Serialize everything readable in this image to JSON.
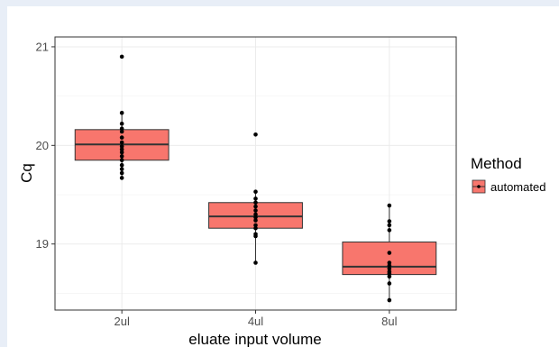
{
  "chart_data": {
    "type": "box",
    "title": "",
    "xlabel": "eluate input volume",
    "ylabel": "Cq",
    "ylim": [
      18.33,
      21.1
    ],
    "yticks": [
      19,
      20,
      21
    ],
    "grid": true,
    "legend": {
      "title": "Method",
      "entries": [
        "automated"
      ],
      "placement": "right"
    },
    "categories": [
      "2ul",
      "4ul",
      "8ul"
    ],
    "series": [
      {
        "name": "automated",
        "color": "#f8766d",
        "boxes": [
          {
            "category": "2ul",
            "min": 19.67,
            "q1": 19.85,
            "median": 20.01,
            "q3": 20.16,
            "max": 20.33,
            "points": [
              20.9,
              20.33,
              20.22,
              20.17,
              20.14,
              20.08,
              20.03,
              19.99,
              19.96,
              19.93,
              19.89,
              19.85,
              19.8,
              19.76,
              19.72,
              19.67
            ]
          },
          {
            "category": "4ul",
            "min": 18.81,
            "q1": 19.16,
            "median": 19.28,
            "q3": 19.42,
            "max": 19.53,
            "points": [
              20.11,
              19.53,
              19.46,
              19.42,
              19.38,
              19.34,
              19.3,
              19.27,
              19.24,
              19.19,
              19.16,
              19.1,
              19.08,
              18.81
            ]
          },
          {
            "category": "8ul",
            "min": 18.43,
            "q1": 18.69,
            "median": 18.77,
            "q3": 19.02,
            "max": 19.39,
            "points": [
              19.39,
              19.23,
              19.19,
              19.14,
              18.91,
              18.81,
              18.78,
              18.75,
              18.72,
              18.7,
              18.67,
              18.6,
              18.43
            ]
          }
        ]
      }
    ]
  },
  "colors": {
    "box_fill": "#f8766d",
    "box_stroke": "#333333",
    "point": "#000000",
    "grid": "#ebebeb",
    "panel_border": "#333333"
  }
}
